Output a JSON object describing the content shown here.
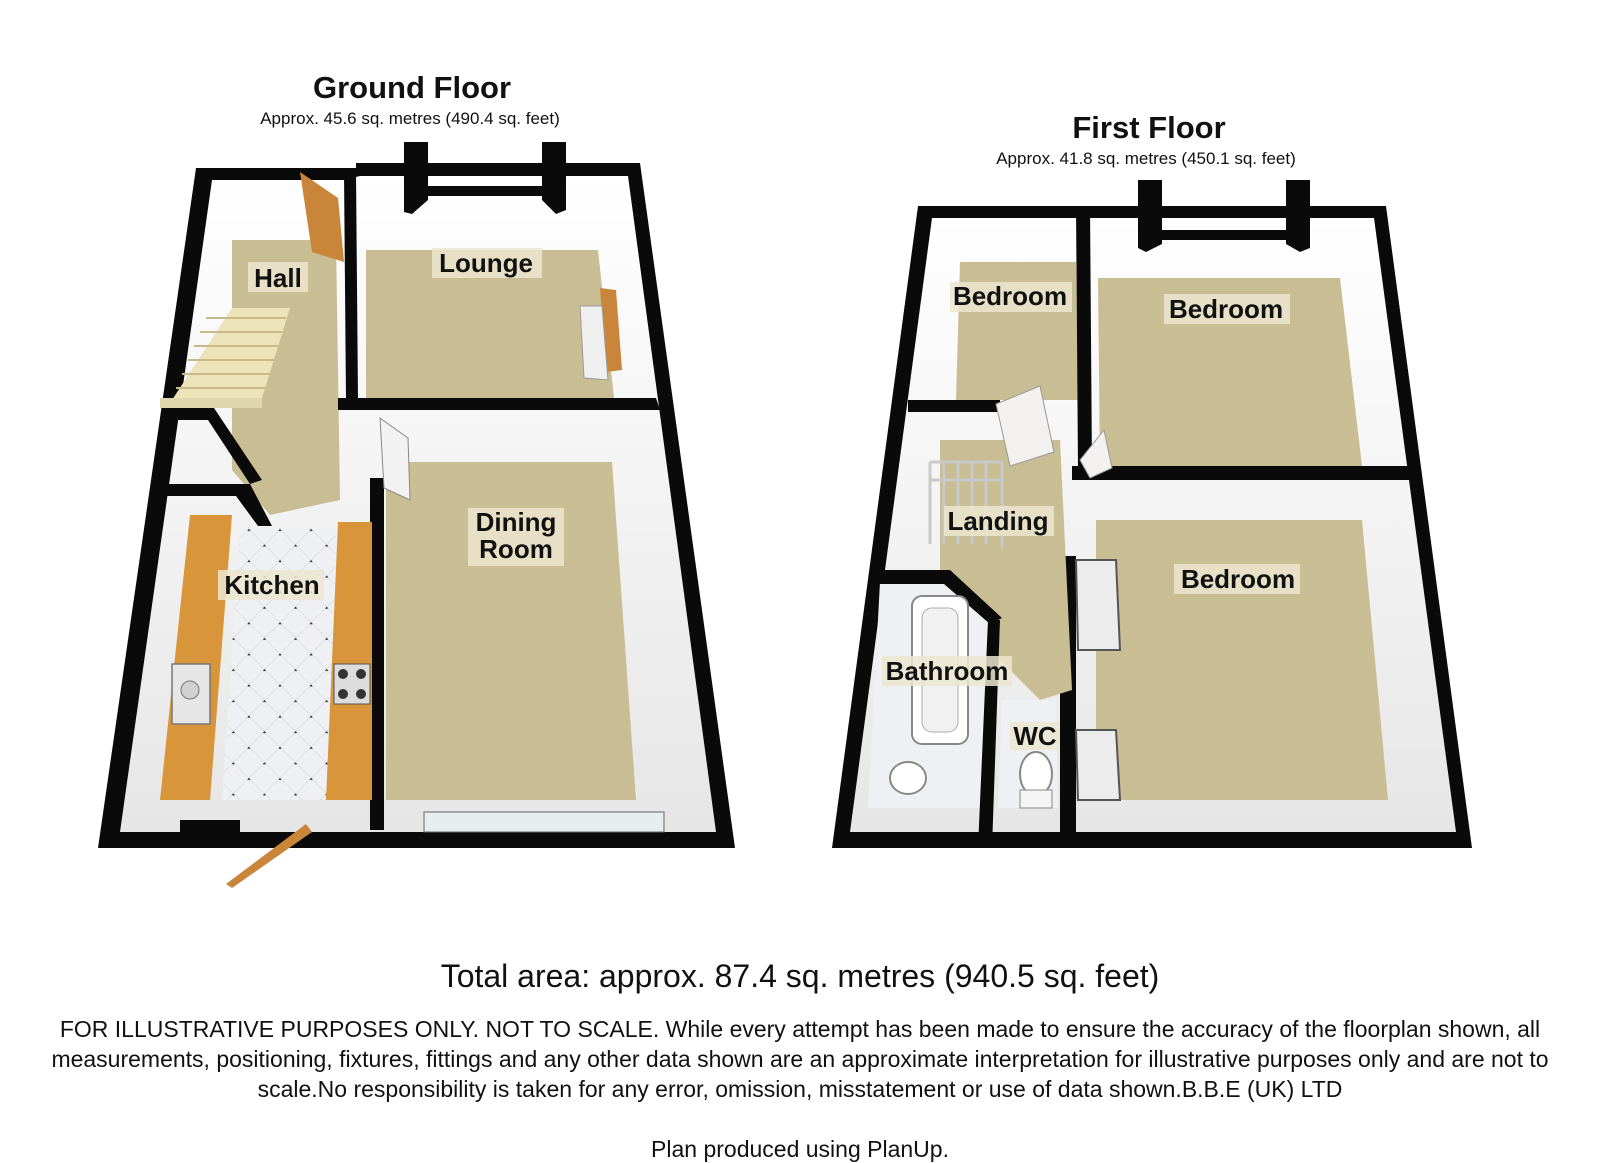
{
  "floors": [
    {
      "title": "Ground Floor",
      "area": "Approx.  45.6 sq. metres (490.4 sq. feet)",
      "rooms": [
        "Hall",
        "Lounge",
        "Dining",
        "Room",
        "Kitchen"
      ]
    },
    {
      "title": "First Floor",
      "area": "Approx.  41.8 sq. metres (450.1 sq. feet)",
      "rooms": [
        "Bedroom",
        "Bedroom",
        "Landing",
        "Bedroom",
        "Bathroom",
        "WC"
      ]
    }
  ],
  "total_area": "Total area: approx.  87.4 sq. metres (940.5 sq. feet)",
  "disclaimer": "FOR ILLUSTRATIVE PURPOSES ONLY. NOT TO SCALE. While every attempt has been made to ensure the accuracy of the floorplan shown, all measurements, positioning, fixtures, fittings and any other data shown are an approximate interpretation for illustrative purposes only and are not to scale.No responsibility is taken for any error, omission, misstatement or use of data shown.B.B.E (UK) LTD",
  "credit": "Plan produced using PlanUp.",
  "colors": {
    "wall": "#0a0a0a",
    "carpet": "#c9bd93",
    "wall_inner": "#f4f4f4",
    "worktop": "#d9953a",
    "door": "#c9863a",
    "tile": "#eef0f3"
  }
}
